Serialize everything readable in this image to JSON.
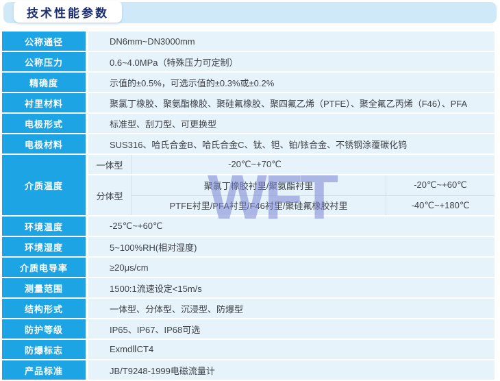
{
  "title": "技术性能参数",
  "watermark": "WFT",
  "colors": {
    "label_blue": "#1da4e4",
    "cell_light_blue": "#e7f3fb",
    "banner_blue": "#cfe9f8",
    "title_navy": "#1b2e6e",
    "watermark_purple": "#7a84d4"
  },
  "table": {
    "top_rows": [
      {
        "label": "公称通径",
        "value": "DN6mm~DN3000mm"
      },
      {
        "label": "公称压力",
        "value": "0.6~4.0MPa（特殊压力可定制）"
      },
      {
        "label": "精确度",
        "value": "示值的±0.5%，可选示值的±0.3%或±0.2%"
      },
      {
        "label": "衬里材料",
        "value": "聚氯丁橡胶、聚氨酯橡胶、聚硅氟橡胶、聚四氟乙烯（PTFE）、聚全氟乙丙烯（F46）、PFA"
      },
      {
        "label": "电极形式",
        "value": "标准型、刮刀型、可更换型"
      },
      {
        "label": "电极材料",
        "value": "SUS316、哈氏合金B、哈氏合金C、钛、钽、铂/铱合金、不锈钢涂覆碳化钨"
      }
    ],
    "medium_temperature": {
      "label": "介质温度",
      "integrated_label": "一体型",
      "integrated_value": "-20℃~+70℃",
      "remote_label": "分体型",
      "remote_rows": [
        {
          "lining": "聚氯丁橡胶衬里/聚氨酯衬里",
          "range": "-20℃~+60℃"
        },
        {
          "lining": "PTFE衬里/PFA衬里/F46衬里/聚硅氟橡胶衬里",
          "range": "-40℃~+180℃"
        }
      ]
    },
    "bottom_rows": [
      {
        "label": "环境温度",
        "value": "-25℃~+60℃"
      },
      {
        "label": "环境湿度",
        "value": "5~100%RH(相对湿度)"
      },
      {
        "label": "介质电导率",
        "value": "≥20μs/cm"
      },
      {
        "label": "测量范围",
        "value": "1500:1流速设定<15m/s"
      },
      {
        "label": "结构形式",
        "value": "一体型、分体型、沉浸型、防爆型"
      },
      {
        "label": "防护等级",
        "value": "IP65、IP67、IP68可选"
      },
      {
        "label": "防爆标志",
        "value": "ExmdⅡCT4"
      },
      {
        "label": "产品标准",
        "value": "JB/T9248-1999电磁流量计"
      }
    ]
  }
}
